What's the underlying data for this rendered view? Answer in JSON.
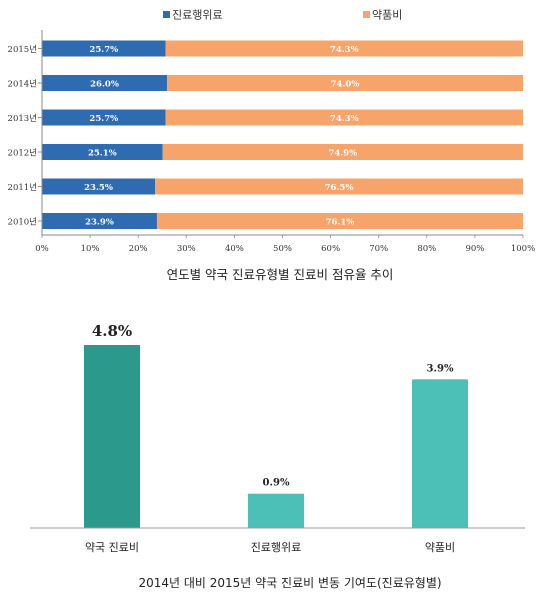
{
  "chart_data": [
    {
      "type": "bar",
      "orientation": "horizontal",
      "stacked": true,
      "percent": true,
      "title": "연도별 약국 진료유형별 진료비 점유율 추이",
      "categories": [
        "2015년",
        "2014년",
        "2013년",
        "2012년",
        "2011년",
        "2010년"
      ],
      "series": [
        {
          "name": "진료행위료",
          "color": "#2e6bb0",
          "values": [
            25.7,
            26.0,
            25.7,
            25.1,
            23.5,
            23.9
          ],
          "labels": [
            "25.7%",
            "26.0%",
            "25.7%",
            "25.1%",
            "23.5%",
            "23.9%"
          ]
        },
        {
          "name": "약품비",
          "color": "#f7a46a",
          "values": [
            74.3,
            74.0,
            74.3,
            74.9,
            76.5,
            76.1
          ],
          "labels": [
            "74.3%",
            "74.0%",
            "74.3%",
            "74.9%",
            "76.5%",
            "76.1%"
          ]
        }
      ],
      "x_ticks": [
        "0%",
        "10%",
        "20%",
        "30%",
        "40%",
        "50%",
        "60%",
        "70%",
        "80%",
        "90%",
        "100%"
      ],
      "xlim": [
        0,
        100
      ],
      "legend": "top-center",
      "grid": false
    },
    {
      "type": "bar",
      "title": "2014년 대비 2015년 약국 진료비 변동 기여도(진료유형별)",
      "categories": [
        "약국 진료비",
        "진료행위료",
        "약품비"
      ],
      "values": [
        4.8,
        0.9,
        3.9
      ],
      "labels": [
        "4.8%",
        "0.9%",
        "3.9%"
      ],
      "colors": [
        "#2b9a8d",
        "#4cc0b6",
        "#4cc0b6"
      ],
      "ylim": [
        0,
        5.2
      ],
      "grid": false
    }
  ]
}
